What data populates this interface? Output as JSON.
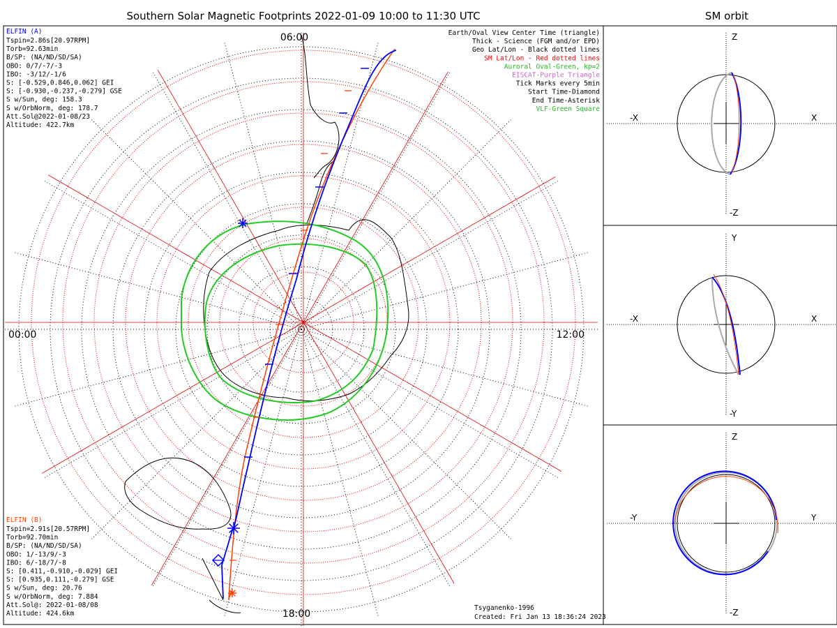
{
  "map": {
    "title": "Southern Solar Magnetic Footprints 2022-01-09 10:00 to 11:30 UTC",
    "clock_labels": {
      "top": "06:00",
      "left": "00:00",
      "right": "12:00",
      "bottom": "18:00"
    },
    "elfin_a": {
      "name": "ELFIN (A)",
      "color": "#0000ff",
      "lines": [
        "Tspin=2.86s[20.97RPM]",
        "Torb=92.63min",
        "B/SP: (NA/ND/SD/SA)",
        "OBO: 0/7/-7/-3",
        "IBO: -3/12/-1/6",
        "S: [-0.529,0.846,0.062] GEI",
        "S: [-0.930,-0.237,-0.279] GSE",
        "S w/Sun, deg: 158.3",
        "S w/OrbNorm, deg: 178.7",
        "Att.Sol@2022-01-08/23",
        "Altitude: 422.7km"
      ]
    },
    "elfin_b": {
      "name": "ELFIN (B)",
      "color": "#ff4000",
      "lines": [
        "Tspin=2.91s[20.57RPM]",
        "Torb=92.70min",
        "B/SP: (NA/ND/SD/SA)",
        "OBO: 1/-13/9/-3",
        "IBO: 6/-18/7/-8",
        "S: [0.411,-0.910,-0.029] GEI",
        "S: [0.935,0.111,-0.279] GSE",
        "S w/Sun, deg: 20.76",
        "S w/OrbNorm, deg: 7.884",
        "Att.Sol@: 2022-01-08/08",
        "Altitude: 424.6km"
      ]
    },
    "legend": [
      {
        "text": "Earth/Oval View Center Time (triangle)",
        "color": "#000000"
      },
      {
        "text": "Thick - Science (FGM and/or EPD)",
        "color": "#000000"
      },
      {
        "text": "Geo Lat/Lon - Black dotted lines",
        "color": "#000000"
      },
      {
        "text": "SM Lat/Lon - Red dotted lines",
        "color": "#ff0000"
      },
      {
        "text": "Auroral Oval-Green, kp=2",
        "color": "#22bb22"
      },
      {
        "text": "EISCAT-Purple Triangle",
        "color": "#cc66cc"
      },
      {
        "text": "Tick Marks every 5min",
        "color": "#000000"
      },
      {
        "text": "Start Time-Diamond",
        "color": "#000000"
      },
      {
        "text": "End Time-Asterisk",
        "color": "#000000"
      },
      {
        "text": "VLF-Green Square",
        "color": "#22bb22"
      }
    ],
    "credit": "Tsyganenko-1996",
    "created": "Created: Fri Jan 13 18:36:24 2023"
  },
  "orbit": {
    "title": "SM orbit",
    "panels": [
      {
        "top": "Z",
        "bottom": "-Z",
        "left": "-X",
        "right": "X"
      },
      {
        "top": "Y",
        "bottom": "-Y",
        "left": "-X",
        "right": "X"
      },
      {
        "top": "Z",
        "bottom": "-Z",
        "left": "-Y",
        "right": "Y"
      }
    ]
  },
  "colors": {
    "elfin_a": "#0000ff",
    "elfin_b": "#ff4000",
    "oval": "#22cc22",
    "sm_grid": "#e00000",
    "neutral": "#aaaaaa"
  }
}
